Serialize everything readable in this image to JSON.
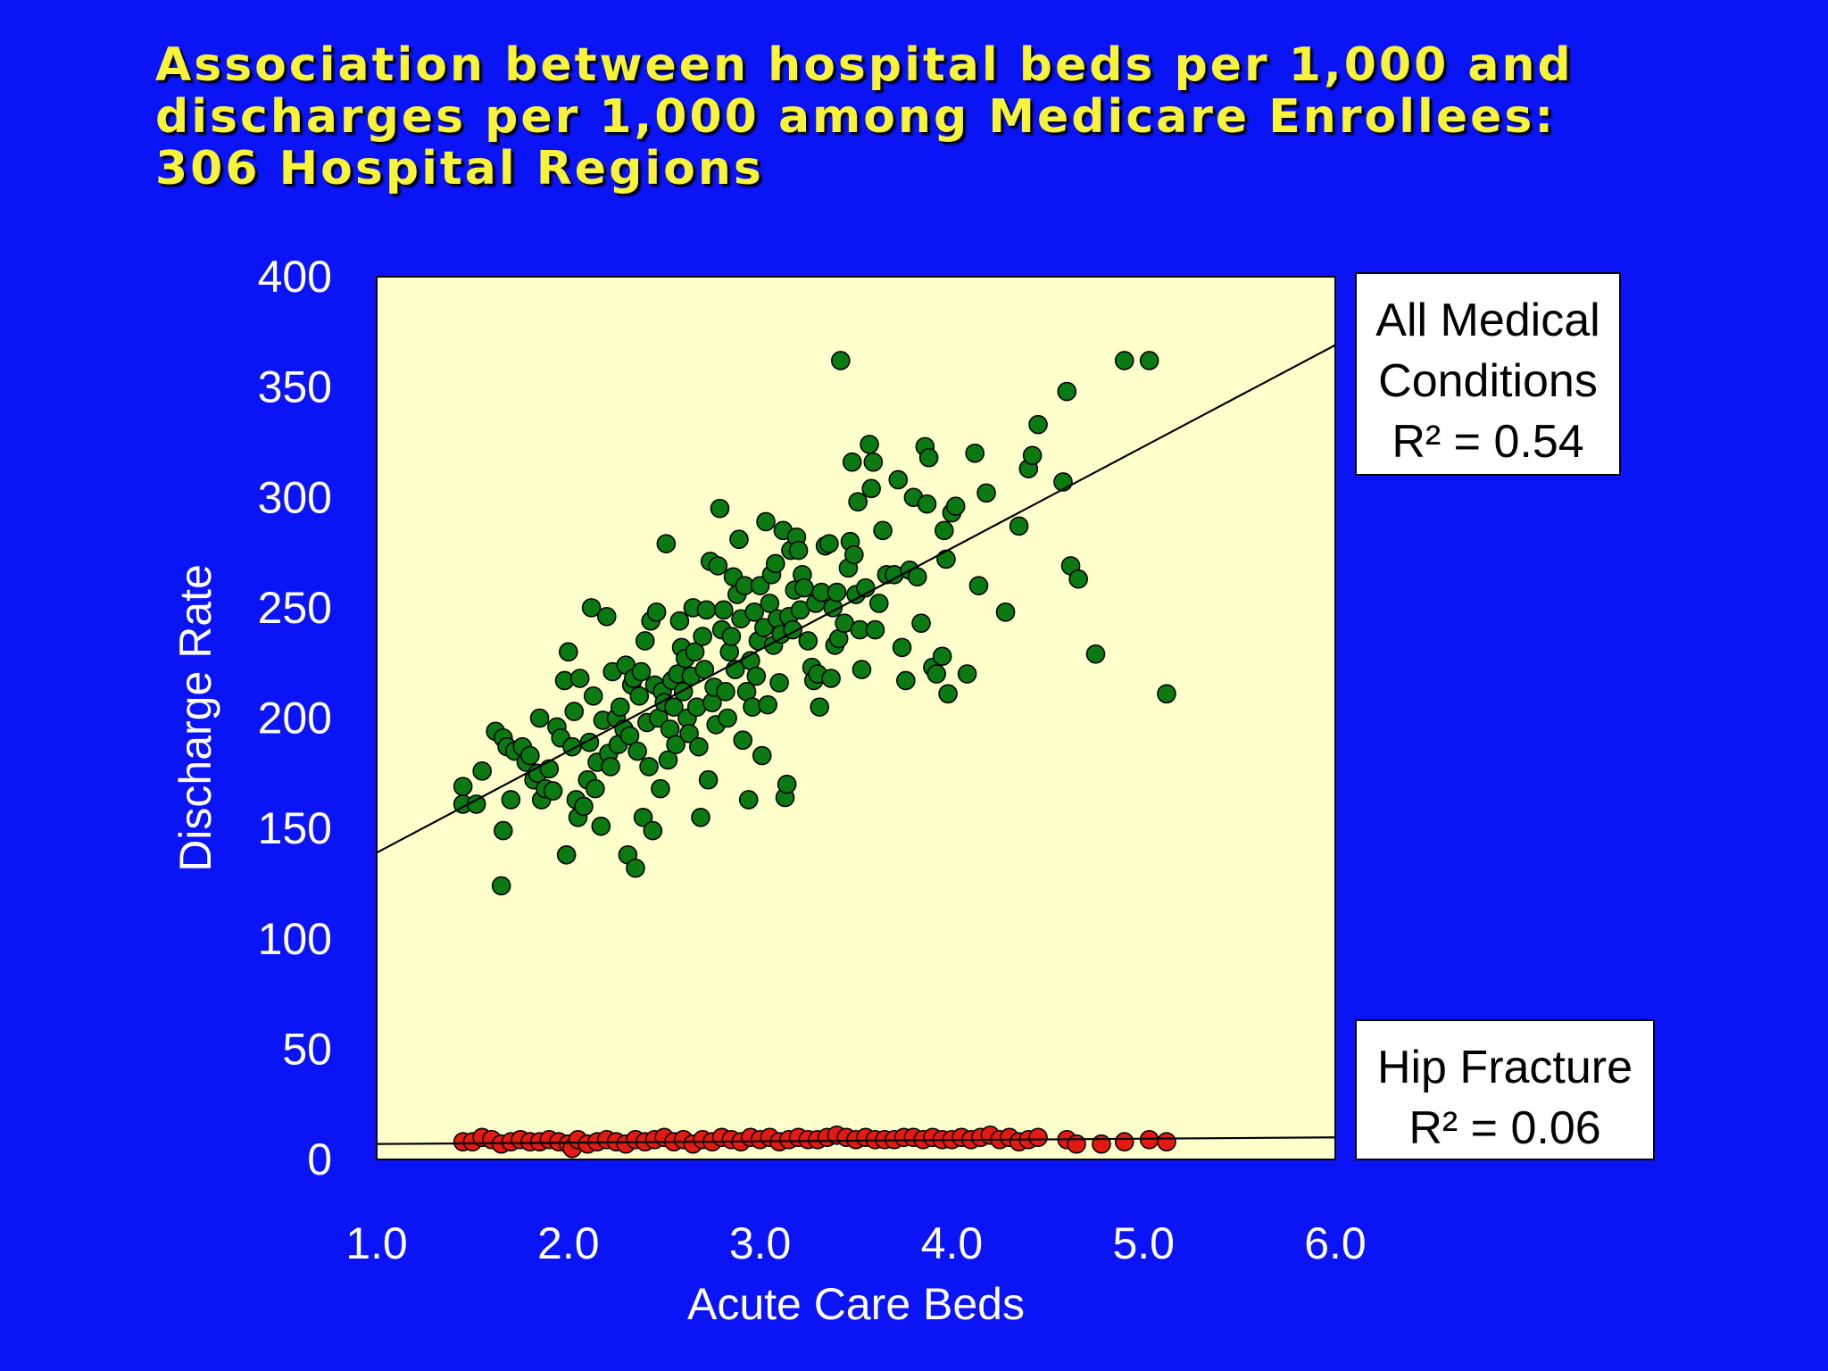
{
  "slide": {
    "title": "Association between hospital beds per 1,000 and discharges per 1,000 among Medicare Enrollees: 306 Hospital Regions"
  },
  "colors": {
    "background": "#0b14f4",
    "title": "#f7f23a",
    "plot_area": "#ffffcc",
    "all_medical_points": "#0b7a10",
    "hip_fracture_points": "#e31a12",
    "fit_line": "#000000"
  },
  "chart_data": {
    "type": "scatter",
    "xlabel": "Acute Care Beds",
    "ylabel": "Discharge Rate",
    "xlim": [
      1.0,
      6.0
    ],
    "ylim": [
      0,
      400
    ],
    "x_ticks": [
      "1.0",
      "2.0",
      "3.0",
      "4.0",
      "5.0",
      "6.0"
    ],
    "y_ticks": [
      "0",
      "50",
      "100",
      "150",
      "200",
      "250",
      "300",
      "350",
      "400"
    ],
    "grid": false,
    "series": [
      {
        "name": "All Medical Conditions",
        "r_squared_label": "R² = 0.54",
        "fit_line": {
          "x": [
            1.0,
            6.0
          ],
          "y": [
            139,
            369
          ]
        },
        "points": [
          [
            1.45,
            169
          ],
          [
            1.45,
            161
          ],
          [
            1.52,
            161
          ],
          [
            1.55,
            176
          ],
          [
            1.62,
            194
          ],
          [
            1.66,
            191
          ],
          [
            1.68,
            187
          ],
          [
            1.7,
            163
          ],
          [
            1.65,
            124
          ],
          [
            1.66,
            149
          ],
          [
            1.72,
            185
          ],
          [
            1.76,
            187
          ],
          [
            1.78,
            180
          ],
          [
            1.8,
            183
          ],
          [
            1.82,
            172
          ],
          [
            1.84,
            175
          ],
          [
            1.85,
            200
          ],
          [
            1.86,
            163
          ],
          [
            1.88,
            168
          ],
          [
            1.9,
            177
          ],
          [
            1.92,
            167
          ],
          [
            1.94,
            196
          ],
          [
            1.96,
            191
          ],
          [
            1.98,
            217
          ],
          [
            2.0,
            230
          ],
          [
            1.99,
            138
          ],
          [
            2.02,
            187
          ],
          [
            2.03,
            203
          ],
          [
            2.04,
            163
          ],
          [
            2.05,
            155
          ],
          [
            2.06,
            218
          ],
          [
            2.08,
            160
          ],
          [
            2.1,
            172
          ],
          [
            2.11,
            189
          ],
          [
            2.12,
            250
          ],
          [
            2.13,
            210
          ],
          [
            2.14,
            168
          ],
          [
            2.15,
            180
          ],
          [
            2.17,
            151
          ],
          [
            2.18,
            199
          ],
          [
            2.2,
            246
          ],
          [
            2.21,
            184
          ],
          [
            2.22,
            178
          ],
          [
            2.23,
            221
          ],
          [
            2.25,
            200
          ],
          [
            2.26,
            188
          ],
          [
            2.27,
            205
          ],
          [
            2.29,
            195
          ],
          [
            2.3,
            224
          ],
          [
            2.31,
            138
          ],
          [
            2.32,
            192
          ],
          [
            2.33,
            215
          ],
          [
            2.34,
            218
          ],
          [
            2.35,
            132
          ],
          [
            2.36,
            185
          ],
          [
            2.37,
            210
          ],
          [
            2.38,
            221
          ],
          [
            2.39,
            155
          ],
          [
            2.4,
            235
          ],
          [
            2.41,
            198
          ],
          [
            2.42,
            178
          ],
          [
            2.43,
            244
          ],
          [
            2.44,
            149
          ],
          [
            2.45,
            215
          ],
          [
            2.46,
            248
          ],
          [
            2.47,
            200
          ],
          [
            2.48,
            168
          ],
          [
            2.49,
            212
          ],
          [
            2.5,
            207
          ],
          [
            2.51,
            279
          ],
          [
            2.52,
            181
          ],
          [
            2.53,
            195
          ],
          [
            2.54,
            217
          ],
          [
            2.55,
            205
          ],
          [
            2.56,
            188
          ],
          [
            2.57,
            220
          ],
          [
            2.58,
            244
          ],
          [
            2.59,
            232
          ],
          [
            2.6,
            212
          ],
          [
            2.61,
            227
          ],
          [
            2.62,
            200
          ],
          [
            2.63,
            193
          ],
          [
            2.64,
            219
          ],
          [
            2.65,
            250
          ],
          [
            2.66,
            230
          ],
          [
            2.67,
            205
          ],
          [
            2.68,
            187
          ],
          [
            2.69,
            155
          ],
          [
            2.7,
            237
          ],
          [
            2.71,
            222
          ],
          [
            2.72,
            249
          ],
          [
            2.73,
            172
          ],
          [
            2.74,
            271
          ],
          [
            2.75,
            207
          ],
          [
            2.76,
            214
          ],
          [
            2.77,
            197
          ],
          [
            2.78,
            269
          ],
          [
            2.79,
            295
          ],
          [
            2.8,
            240
          ],
          [
            2.81,
            249
          ],
          [
            2.82,
            212
          ],
          [
            2.83,
            200
          ],
          [
            2.84,
            230
          ],
          [
            2.85,
            237
          ],
          [
            2.86,
            264
          ],
          [
            2.87,
            222
          ],
          [
            2.88,
            256
          ],
          [
            2.89,
            281
          ],
          [
            2.9,
            245
          ],
          [
            2.91,
            190
          ],
          [
            2.92,
            260
          ],
          [
            2.93,
            212
          ],
          [
            2.94,
            163
          ],
          [
            2.95,
            226
          ],
          [
            2.96,
            205
          ],
          [
            2.97,
            248
          ],
          [
            2.98,
            219
          ],
          [
            2.99,
            235
          ],
          [
            3.0,
            260
          ],
          [
            3.01,
            183
          ],
          [
            3.02,
            241
          ],
          [
            3.03,
            289
          ],
          [
            3.04,
            206
          ],
          [
            3.05,
            252
          ],
          [
            3.06,
            265
          ],
          [
            3.07,
            233
          ],
          [
            3.08,
            270
          ],
          [
            3.09,
            245
          ],
          [
            3.1,
            216
          ],
          [
            3.11,
            238
          ],
          [
            3.12,
            285
          ],
          [
            3.13,
            164
          ],
          [
            3.14,
            170
          ],
          [
            3.15,
            246
          ],
          [
            3.16,
            276
          ],
          [
            3.17,
            240
          ],
          [
            3.18,
            258
          ],
          [
            3.19,
            282
          ],
          [
            3.2,
            276
          ],
          [
            3.21,
            249
          ],
          [
            3.22,
            265
          ],
          [
            3.23,
            259
          ],
          [
            3.25,
            235
          ],
          [
            3.27,
            223
          ],
          [
            3.28,
            217
          ],
          [
            3.29,
            252
          ],
          [
            3.3,
            220
          ],
          [
            3.31,
            205
          ],
          [
            3.32,
            257
          ],
          [
            3.34,
            278
          ],
          [
            3.36,
            279
          ],
          [
            3.37,
            218
          ],
          [
            3.38,
            250
          ],
          [
            3.39,
            233
          ],
          [
            3.4,
            257
          ],
          [
            3.41,
            236
          ],
          [
            3.42,
            362
          ],
          [
            3.44,
            243
          ],
          [
            3.46,
            268
          ],
          [
            3.47,
            280
          ],
          [
            3.48,
            316
          ],
          [
            3.49,
            274
          ],
          [
            3.5,
            256
          ],
          [
            3.51,
            298
          ],
          [
            3.52,
            240
          ],
          [
            3.53,
            222
          ],
          [
            3.55,
            259
          ],
          [
            3.57,
            324
          ],
          [
            3.58,
            304
          ],
          [
            3.59,
            316
          ],
          [
            3.6,
            240
          ],
          [
            3.62,
            252
          ],
          [
            3.64,
            285
          ],
          [
            3.66,
            265
          ],
          [
            3.7,
            265
          ],
          [
            3.72,
            308
          ],
          [
            3.74,
            232
          ],
          [
            3.76,
            217
          ],
          [
            3.78,
            267
          ],
          [
            3.8,
            300
          ],
          [
            3.82,
            264
          ],
          [
            3.84,
            243
          ],
          [
            3.86,
            323
          ],
          [
            3.87,
            297
          ],
          [
            3.88,
            318
          ],
          [
            3.9,
            223
          ],
          [
            3.92,
            220
          ],
          [
            3.95,
            228
          ],
          [
            3.96,
            285
          ],
          [
            3.97,
            272
          ],
          [
            3.98,
            211
          ],
          [
            4.0,
            293
          ],
          [
            4.02,
            296
          ],
          [
            4.08,
            220
          ],
          [
            4.12,
            320
          ],
          [
            4.14,
            260
          ],
          [
            4.18,
            302
          ],
          [
            4.28,
            248
          ],
          [
            4.35,
            287
          ],
          [
            4.4,
            313
          ],
          [
            4.42,
            319
          ],
          [
            4.45,
            333
          ],
          [
            4.58,
            307
          ],
          [
            4.6,
            348
          ],
          [
            4.62,
            269
          ],
          [
            4.66,
            263
          ],
          [
            4.75,
            229
          ],
          [
            4.9,
            362
          ],
          [
            5.03,
            362
          ],
          [
            5.12,
            211
          ]
        ]
      },
      {
        "name": "Hip Fracture",
        "r_squared_label": "R² = 0.06",
        "fit_line": {
          "x": [
            1.0,
            6.0
          ],
          "y": [
            7,
            10
          ]
        },
        "points": [
          [
            1.45,
            8
          ],
          [
            1.5,
            8
          ],
          [
            1.55,
            10
          ],
          [
            1.6,
            9
          ],
          [
            1.65,
            7
          ],
          [
            1.7,
            8
          ],
          [
            1.75,
            9
          ],
          [
            1.8,
            8
          ],
          [
            1.85,
            8
          ],
          [
            1.9,
            9
          ],
          [
            1.95,
            8
          ],
          [
            2.0,
            7
          ],
          [
            2.02,
            5
          ],
          [
            2.05,
            9
          ],
          [
            2.1,
            7
          ],
          [
            2.15,
            8
          ],
          [
            2.2,
            9
          ],
          [
            2.25,
            8
          ],
          [
            2.3,
            7
          ],
          [
            2.35,
            9
          ],
          [
            2.4,
            8
          ],
          [
            2.45,
            9
          ],
          [
            2.5,
            10
          ],
          [
            2.55,
            8
          ],
          [
            2.6,
            9
          ],
          [
            2.65,
            7
          ],
          [
            2.7,
            9
          ],
          [
            2.75,
            8
          ],
          [
            2.8,
            10
          ],
          [
            2.85,
            9
          ],
          [
            2.9,
            8
          ],
          [
            2.95,
            10
          ],
          [
            3.0,
            9
          ],
          [
            3.05,
            10
          ],
          [
            3.1,
            8
          ],
          [
            3.15,
            9
          ],
          [
            3.2,
            10
          ],
          [
            3.25,
            9
          ],
          [
            3.3,
            9
          ],
          [
            3.35,
            10
          ],
          [
            3.4,
            11
          ],
          [
            3.45,
            10
          ],
          [
            3.5,
            9
          ],
          [
            3.55,
            10
          ],
          [
            3.6,
            9
          ],
          [
            3.65,
            9
          ],
          [
            3.7,
            9
          ],
          [
            3.75,
            10
          ],
          [
            3.8,
            10
          ],
          [
            3.85,
            9
          ],
          [
            3.9,
            10
          ],
          [
            3.95,
            9
          ],
          [
            4.0,
            9
          ],
          [
            4.05,
            10
          ],
          [
            4.1,
            9
          ],
          [
            4.15,
            10
          ],
          [
            4.2,
            11
          ],
          [
            4.25,
            9
          ],
          [
            4.3,
            10
          ],
          [
            4.35,
            8
          ],
          [
            4.4,
            9
          ],
          [
            4.45,
            10
          ],
          [
            4.6,
            9
          ],
          [
            4.65,
            7
          ],
          [
            4.78,
            7
          ],
          [
            4.9,
            8
          ],
          [
            5.03,
            9
          ],
          [
            5.12,
            8
          ]
        ]
      }
    ]
  }
}
